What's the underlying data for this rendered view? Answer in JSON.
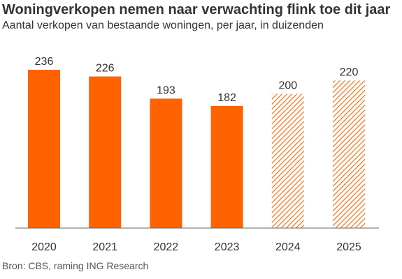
{
  "title": "Woningverkopen nemen naar verwachting flink toe dit jaar",
  "subtitle": "Aantal verkopen van bestaande woningen, per jaar, in duizenden",
  "source": "Bron: CBS, raming ING Research",
  "colors": {
    "accent": "#FF6200",
    "text": "#333333",
    "axis": "#666666"
  },
  "chart_data": {
    "type": "bar",
    "categories": [
      "2020",
      "2021",
      "2022",
      "2023",
      "2024",
      "2025"
    ],
    "values": [
      236,
      226,
      193,
      182,
      200,
      220
    ],
    "data_labels": [
      "236",
      "226",
      "193",
      "182",
      "200",
      "220"
    ],
    "forecast": [
      false,
      false,
      false,
      false,
      true,
      true
    ],
    "ylim": [
      0,
      236
    ],
    "grid": false,
    "legend": "none",
    "xlabel": "",
    "ylabel": ""
  }
}
